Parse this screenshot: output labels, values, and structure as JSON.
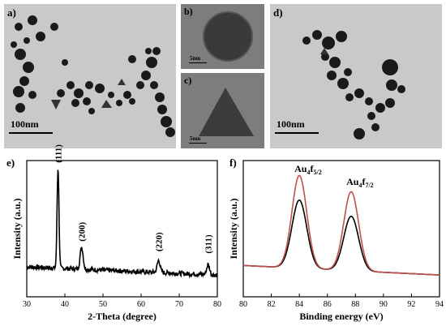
{
  "panels": {
    "a": {
      "label": "a)",
      "scale": "100nm"
    },
    "b": {
      "label": "b)",
      "scale": "5nm"
    },
    "c": {
      "label": "c)",
      "scale": "5nm"
    },
    "d": {
      "label": "d)",
      "scale": "100nm"
    },
    "e": {
      "label": "e)"
    },
    "f": {
      "label": "f)"
    }
  },
  "chart_data": [
    {
      "type": "line",
      "xlabel": "2-Theta (degree)",
      "ylabel": "Intensity (a.u.)",
      "xlim": [
        30,
        80
      ],
      "xticks": [
        30,
        40,
        50,
        60,
        70,
        80
      ],
      "peaks": [
        {
          "x": 38.2,
          "label": "(111)",
          "height": 1.0
        },
        {
          "x": 44.4,
          "label": "(200)",
          "height": 0.22
        },
        {
          "x": 64.6,
          "label": "(220)",
          "height": 0.12
        },
        {
          "x": 77.6,
          "label": "(311)",
          "height": 0.1
        }
      ],
      "line_color": "#000000"
    },
    {
      "type": "line",
      "xlabel": "Binding energy (eV)",
      "ylabel": "Intensity (a.u.)",
      "xlim": [
        80,
        94
      ],
      "xticks": [
        80,
        82,
        84,
        86,
        88,
        90,
        92,
        94
      ],
      "annotations": [
        {
          "x": 84.0,
          "base": "Au",
          "sub1": "4",
          "mid": "f",
          "sub2": "5/2"
        },
        {
          "x": 87.7,
          "base": "Au",
          "sub1": "4",
          "mid": "f",
          "sub2": "7/2"
        }
      ],
      "series": [
        {
          "color": "#000000",
          "peaks": [
            [
              84.0,
              0.68
            ],
            [
              87.7,
              0.58
            ]
          ]
        },
        {
          "color": "#c0504d",
          "peaks": [
            [
              84.0,
              0.86
            ],
            [
              87.7,
              0.76
            ]
          ]
        }
      ]
    }
  ]
}
